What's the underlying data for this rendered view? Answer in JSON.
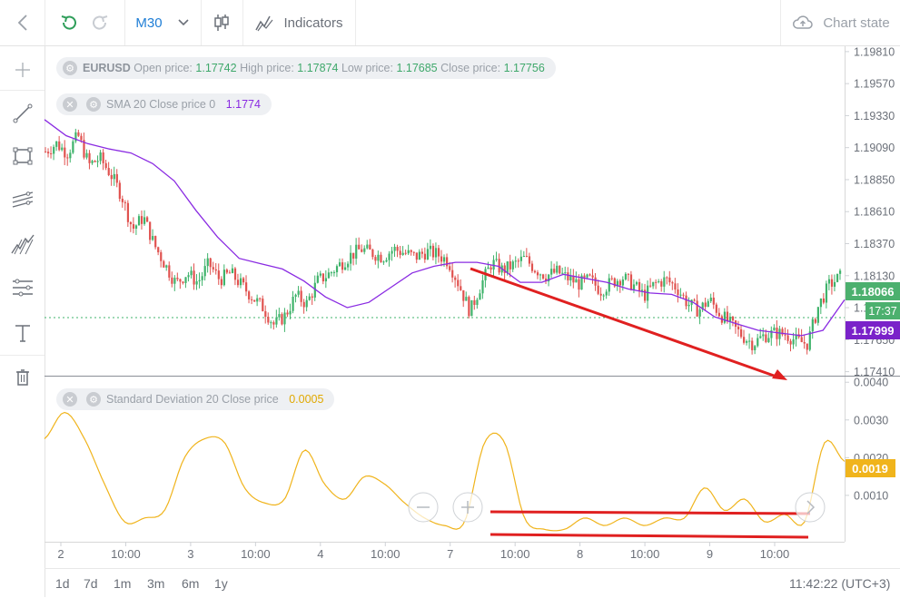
{
  "toolbar": {
    "timeframe": "M30",
    "indicators_label": "Indicators",
    "chart_state_label": "Chart state"
  },
  "legend": {
    "symbol": "EURUSD",
    "open_label": "Open price:",
    "open": "1.17742",
    "high_label": "High price:",
    "high": "1.17874",
    "low_label": "Low price:",
    "low": "1.17685",
    "close_label": "Close price:",
    "close": "1.17756",
    "sma_label": "SMA 20 Close price 0",
    "sma_value": "1.1774",
    "sd_label": "Standard Deviation 20 Close price",
    "sd_value": "0.0005"
  },
  "price_badges": {
    "last": "1.18066",
    "countdown": "17:37",
    "sma": "1.17999"
  },
  "sd_badge": "0.0019",
  "bottom": {
    "ranges": [
      "1d",
      "7d",
      "1m",
      "3m",
      "6m",
      "1y"
    ],
    "clock": "11:42:22 (UTC+3)"
  },
  "colors": {
    "bull": "#3fb36b",
    "bear": "#e0524f",
    "sma": "#8a2be2",
    "stddev": "#f0b41c",
    "annotation": "#e02020",
    "accent": "#1f7ed6"
  },
  "icons": [
    "back-icon",
    "refresh-icon",
    "redo-icon",
    "chevron-down-icon",
    "candles-icon",
    "indicators-icon",
    "cloud-upload-icon",
    "crosshair-icon",
    "trendline-icon",
    "rectangle-icon",
    "channel-icon",
    "fib-icon",
    "levels-icon",
    "text-icon",
    "trash-icon",
    "zoom-out-icon",
    "zoom-in-icon",
    "scroll-right-icon",
    "gear-icon",
    "close-icon"
  ],
  "chart_data": [
    {
      "type": "candlestick",
      "title": "EURUSD M30",
      "yaxis_ticks": [
        "1.19810",
        "1.19570",
        "1.19330",
        "1.19090",
        "1.18850",
        "1.18610",
        "1.18370",
        "1.18130",
        "1.17890",
        "1.17650",
        "1.17410"
      ],
      "ylim": [
        1.1738,
        1.1985
      ],
      "xaxis_ticks": [
        "2",
        "10:00",
        "3",
        "10:00",
        "4",
        "10:00",
        "7",
        "10:00",
        "8",
        "10:00",
        "9",
        "10:00"
      ],
      "close_series": [
        1.1906,
        1.1912,
        1.1905,
        1.1918,
        1.1896,
        1.1901,
        1.1889,
        1.1873,
        1.1848,
        1.1857,
        1.1836,
        1.1821,
        1.1807,
        1.1815,
        1.1808,
        1.1822,
        1.181,
        1.1815,
        1.1806,
        1.1797,
        1.1789,
        1.1776,
        1.1783,
        1.1798,
        1.1792,
        1.1809,
        1.1814,
        1.1821,
        1.1828,
        1.1833,
        1.183,
        1.1827,
        1.1833,
        1.183,
        1.1827,
        1.1831,
        1.1829,
        1.1824,
        1.1806,
        1.1786,
        1.1806,
        1.1823,
        1.1817,
        1.1821,
        1.1826,
        1.1818,
        1.1813,
        1.1816,
        1.1811,
        1.1807,
        1.181,
        1.1802,
        1.1808,
        1.1812,
        1.1806,
        1.1798,
        1.1807,
        1.181,
        1.1804,
        1.1792,
        1.1787,
        1.1795,
        1.1784,
        1.1776,
        1.1768,
        1.1762,
        1.1768,
        1.177,
        1.1769,
        1.1764,
        1.1762,
        1.179,
        1.1806,
        1.1812
      ],
      "series": [
        {
          "name": "SMA 20 Close price 0",
          "values": [
            1.193,
            1.1918,
            1.1912,
            1.1908,
            1.1905,
            1.1897,
            1.1884,
            1.1862,
            1.1842,
            1.1826,
            1.1822,
            1.1818,
            1.1809,
            1.1797,
            1.1789,
            1.1793,
            1.1804,
            1.1815,
            1.182,
            1.1823,
            1.1823,
            1.182,
            1.1808,
            1.1808,
            1.1814,
            1.1811,
            1.1808,
            1.1803,
            1.18,
            1.1799,
            1.1793,
            1.1782,
            1.1777,
            1.1772,
            1.177,
            1.1768,
            1.1772,
            1.1795
          ]
        }
      ]
    },
    {
      "type": "line",
      "title": "Standard Deviation 20 Close price",
      "yaxis_ticks": [
        "0.0040",
        "0.0030",
        "0.0020",
        "0.0010"
      ],
      "ylim": [
        -0.00023,
        0.00415
      ],
      "series": [
        {
          "name": "Standard Deviation 20 Close price",
          "values": [
            0.0025,
            0.0032,
            0.0025,
            0.0013,
            0.0003,
            0.0004,
            0.0006,
            0.002,
            0.0025,
            0.0024,
            0.0012,
            0.0008,
            0.0009,
            0.0022,
            0.0013,
            0.0009,
            0.0015,
            0.0013,
            0.0008,
            0.0004,
            0.0002,
            0.0003,
            0.0024,
            0.0024,
            0.0004,
            0.0001,
            0.0001,
            0.0004,
            0.0002,
            0.0004,
            0.0002,
            0.0004,
            0.0004,
            0.0012,
            0.0006,
            0.0009,
            0.0003,
            0.0005,
            0.0003,
            0.0024,
            0.0019
          ]
        }
      ]
    }
  ]
}
